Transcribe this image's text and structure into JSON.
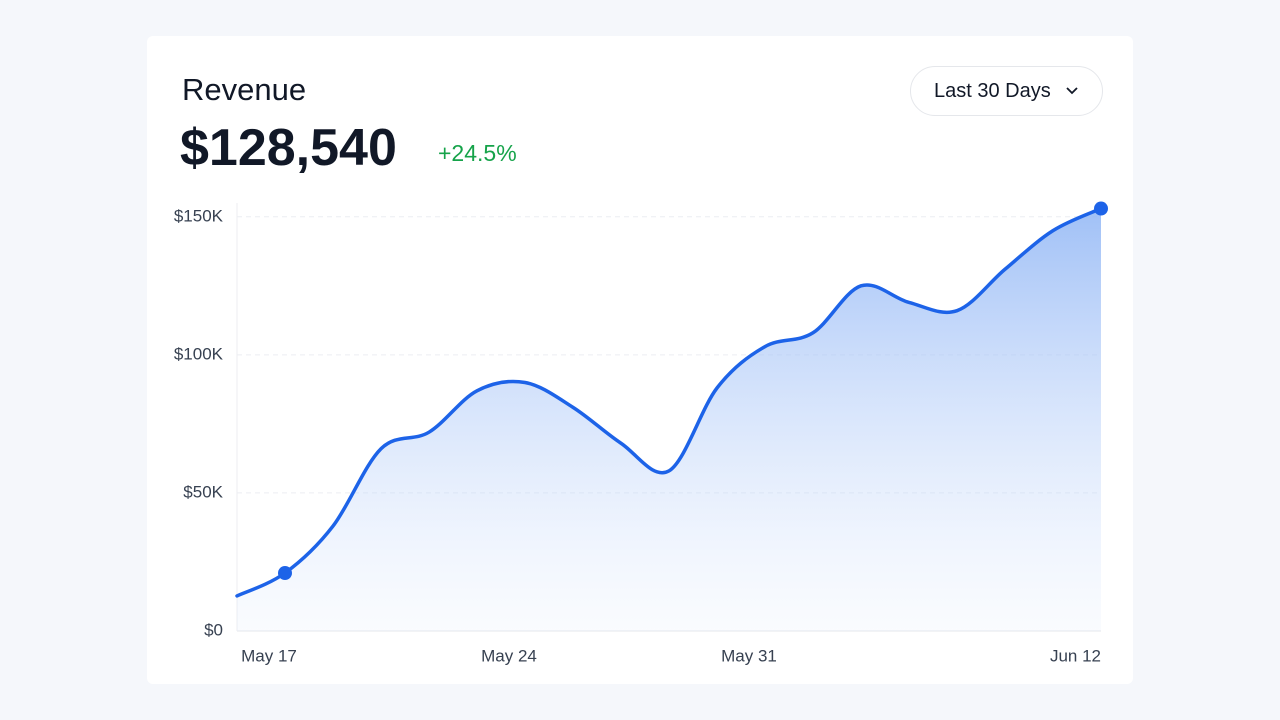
{
  "chart_data": {
    "type": "line",
    "title": "Revenue",
    "total": "$128,540",
    "change": "+24.5%",
    "range_selector": "Last 30 Days",
    "categories": [
      null,
      "May 17",
      null,
      null,
      null,
      null,
      "May 24",
      null,
      null,
      null,
      null,
      "May 31",
      null,
      null,
      null,
      null,
      null,
      null,
      "Jun 12"
    ],
    "series": [
      {
        "name": "Revenue",
        "color": "#1d63e8",
        "values": [
          12.7,
          21,
          38,
          66,
          72,
          87,
          90,
          81,
          68,
          58,
          88,
          103,
          108,
          125,
          119,
          116,
          131,
          145,
          153
        ]
      }
    ],
    "ylim": [
      0,
      155
    ],
    "yticks": [
      {
        "value": 0,
        "label": "$0"
      },
      {
        "value": 50,
        "label": "$50K"
      },
      {
        "value": 100,
        "label": "$100K"
      },
      {
        "value": 150,
        "label": "$150K"
      }
    ],
    "grid": true
  }
}
